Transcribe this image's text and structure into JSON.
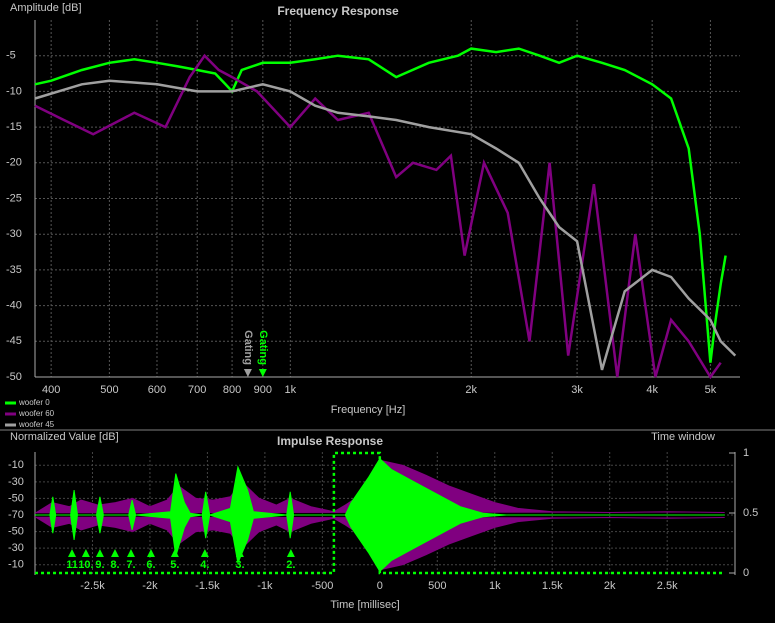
{
  "chart_data": [
    {
      "type": "line",
      "title": "Frequency Response",
      "y_label": "Amplitude [dB]",
      "x_label": "Frequency [Hz]",
      "xscale": "log",
      "grid": true,
      "legend": "bottom-left",
      "xlim": [
        376,
        5600
      ],
      "ylim": [
        -50,
        0
      ],
      "xticks": [
        400,
        500,
        600,
        700,
        800,
        900,
        {
          "value": 1000,
          "label": "1k"
        },
        {
          "value": 2000,
          "label": "2k"
        },
        {
          "value": 3000,
          "label": "3k"
        },
        {
          "value": 4000,
          "label": "4k"
        },
        {
          "value": 5000,
          "label": "5k"
        }
      ],
      "yticks": [
        -5,
        -10,
        -15,
        -20,
        -25,
        -30,
        -35,
        -40,
        -45,
        -50
      ],
      "series": [
        {
          "name": "woofer 0",
          "color": "#00ff00",
          "x": [
            376,
            400,
            450,
            500,
            550,
            600,
            650,
            700,
            750,
            780,
            800,
            830,
            900,
            1000,
            1100,
            1200,
            1350,
            1500,
            1700,
            1900,
            2000,
            2200,
            2400,
            2600,
            2800,
            3000,
            3300,
            3600,
            4000,
            4300,
            4600,
            4800,
            5000,
            5100,
            5200,
            5300
          ],
          "values": [
            -9,
            -8.5,
            -7,
            -6,
            -5.5,
            -6,
            -6.5,
            -7,
            -7.5,
            -9,
            -10,
            -7,
            -6,
            -6,
            -5.5,
            -5,
            -5.5,
            -8,
            -6,
            -5,
            -4,
            -4.5,
            -4,
            -5,
            -6,
            -5,
            -6,
            -7,
            -9,
            -11,
            -18,
            -30,
            -48,
            -42,
            -37,
            -33
          ]
        },
        {
          "name": "woofer 60",
          "color": "#800080",
          "x": [
            376,
            420,
            470,
            550,
            620,
            680,
            720,
            760,
            800,
            880,
            1000,
            1100,
            1200,
            1350,
            1500,
            1600,
            1750,
            1850,
            1950,
            2100,
            2300,
            2500,
            2700,
            2900,
            3200,
            3500,
            3750,
            4050,
            4300,
            4600,
            5000,
            5200
          ],
          "values": [
            -12,
            -14,
            -16,
            -13,
            -15,
            -8,
            -5,
            -7,
            -8,
            -10,
            -15,
            -11,
            -14,
            -13,
            -22,
            -20,
            -21,
            -19,
            -33,
            -20,
            -27,
            -45,
            -20,
            -47,
            -23,
            -50,
            -30,
            -50,
            -42,
            -45,
            -50,
            -48
          ]
        },
        {
          "name": "woofer 45",
          "color": "#a0a0a0",
          "x": [
            376,
            450,
            500,
            600,
            700,
            800,
            900,
            1000,
            1100,
            1200,
            1350,
            1500,
            1700,
            2000,
            2200,
            2400,
            2600,
            2800,
            3000,
            3300,
            3600,
            4000,
            4300,
            4600,
            5000,
            5200,
            5500
          ],
          "values": [
            -11,
            -9,
            -8.5,
            -9,
            -10,
            -10,
            -9,
            -10,
            -12,
            -13,
            -13.5,
            -14,
            -15,
            -16,
            -18,
            -20,
            -25,
            -29,
            -31,
            -49,
            -38,
            -35,
            -36,
            -39,
            -42,
            -45,
            -47
          ]
        }
      ],
      "annotations": [
        {
          "text": "Gating",
          "x": 850,
          "color": "#a0a0a0"
        },
        {
          "text": "Gating",
          "x": 900,
          "color": "#00ff00"
        }
      ]
    },
    {
      "type": "impulse",
      "title": "Impulse Response",
      "y_label": "Normalized Value [dB]",
      "y2_label": "Time window",
      "x_label": "Time [millisec]",
      "grid": true,
      "xlim": [
        -3000,
        3090
      ],
      "ylim": [
        -70,
        0
      ],
      "y2lim": [
        0,
        1
      ],
      "xticks": [
        {
          "value": -2500,
          "label": "-2.5k"
        },
        {
          "value": -2000,
          "label": "-2k"
        },
        {
          "value": -1500,
          "label": "-1.5k"
        },
        {
          "value": -1000,
          "label": "-1k"
        },
        -500,
        0,
        500,
        {
          "value": 1000,
          "label": "1k"
        },
        {
          "value": 1500,
          "label": "1.5k"
        },
        {
          "value": 2000,
          "label": "2k"
        },
        {
          "value": 2500,
          "label": "2.5k"
        }
      ],
      "yticks": [
        -10,
        -30,
        -50,
        -70
      ],
      "yticks_lower": [
        -50,
        -30,
        -10
      ],
      "y2ticks": [
        0,
        0.5,
        1
      ],
      "series": [
        {
          "name": "woofer 60",
          "color": "#800080",
          "x": [
            -3000,
            -2850,
            -2700,
            -2600,
            -2450,
            -2300,
            -2150,
            -2000,
            -1850,
            -1750,
            -1600,
            -1450,
            -1300,
            -1200,
            -1050,
            -900,
            -780,
            -600,
            -400,
            -300,
            -100,
            0,
            200,
            400,
            600,
            800,
            1000,
            1200,
            1500,
            2000,
            2500,
            3000
          ],
          "values": [
            -68,
            -55,
            -60,
            -52,
            -58,
            -55,
            -50,
            -60,
            -52,
            -35,
            -50,
            -52,
            -48,
            -30,
            -50,
            -58,
            -50,
            -60,
            -66,
            -58,
            -40,
            -4,
            -10,
            -22,
            -35,
            -45,
            -55,
            -62,
            -66,
            -67,
            -66,
            -67
          ]
        },
        {
          "name": "woofer 0",
          "color": "#00ff00",
          "x": [
            -3000,
            -2870,
            -2845,
            -2820,
            -2690,
            -2660,
            -2630,
            -2465,
            -2435,
            -2405,
            -2185,
            -2155,
            -2125,
            -1820,
            -1775,
            -1700,
            -1650,
            -1545,
            -1515,
            -1480,
            -1300,
            -1235,
            -1150,
            -1100,
            -810,
            -780,
            -750,
            -300,
            -250,
            -100,
            0,
            100,
            300,
            500,
            700,
            900,
            1100,
            3000
          ],
          "values": [
            -70,
            -70,
            -48,
            -70,
            -70,
            -40,
            -70,
            -70,
            -48,
            -70,
            -70,
            -52,
            -70,
            -66,
            -20,
            -55,
            -68,
            -70,
            -42,
            -70,
            -62,
            -12,
            -40,
            -66,
            -70,
            -42,
            -70,
            -70,
            -55,
            -25,
            -2,
            -15,
            -30,
            -45,
            -60,
            -68,
            -70,
            -70
          ]
        },
        {
          "name": "Time window",
          "color": "#00ff00",
          "axis": "y2",
          "x": [
            -3000,
            -400,
            -400,
            0,
            0,
            3000
          ],
          "values": [
            0,
            0,
            1,
            1,
            0,
            0
          ]
        }
      ],
      "markers": [
        {
          "t": -2678,
          "label": "11"
        },
        {
          "t": -2557,
          "label": "10."
        },
        {
          "t": -2435,
          "label": "9."
        },
        {
          "t": -2304,
          "label": "8."
        },
        {
          "t": -2165,
          "label": "7."
        },
        {
          "t": -1991,
          "label": "6."
        },
        {
          "t": -1783,
          "label": "5."
        },
        {
          "t": -1522,
          "label": "4."
        },
        {
          "t": -1217,
          "label": "3."
        },
        {
          "t": -774,
          "label": "2."
        }
      ],
      "marker_color": "#00ff00"
    }
  ]
}
